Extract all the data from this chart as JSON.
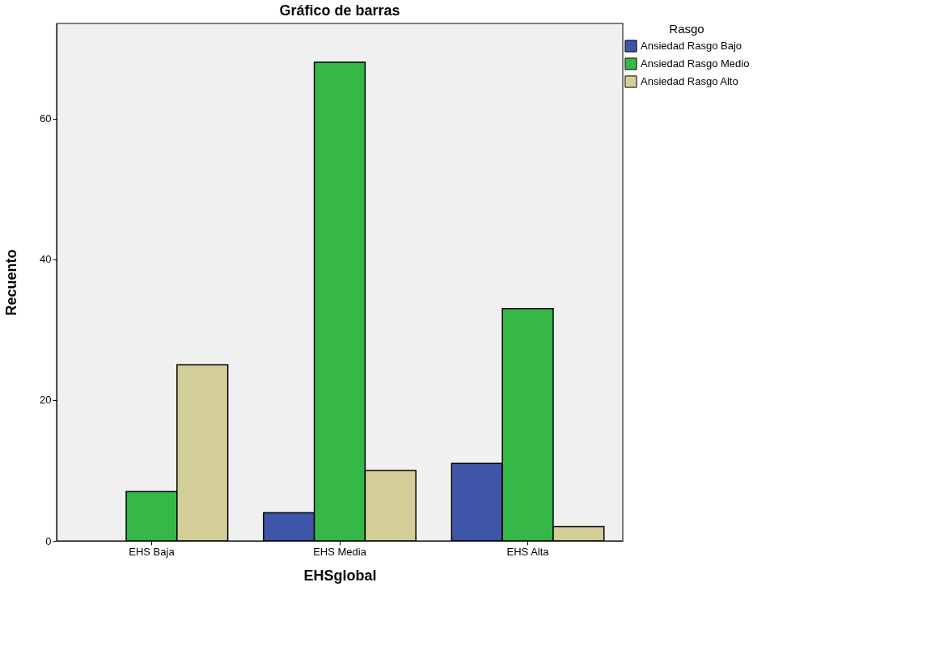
{
  "chart_data": {
    "type": "bar",
    "title": "Gráfico de barras",
    "xlabel": "EHSglobal",
    "ylabel": "Recuento",
    "legend_title": "Rasgo",
    "categories": [
      "EHS Baja",
      "EHS Media",
      "EHS Alta"
    ],
    "series": [
      {
        "name": "Ansiedad Rasgo Bajo",
        "color": "#3e55a8",
        "values": [
          null,
          4,
          11
        ]
      },
      {
        "name": "Ansiedad Rasgo Medio",
        "color": "#35b848",
        "values": [
          7,
          68,
          33
        ]
      },
      {
        "name": "Ansiedad Rasgo Alto",
        "color": "#d3ce98",
        "values": [
          25,
          10,
          2
        ]
      }
    ],
    "ylim": [
      0,
      73.5
    ],
    "yticks": [
      0,
      20,
      40,
      60
    ],
    "grid": false,
    "legend": "top right"
  }
}
